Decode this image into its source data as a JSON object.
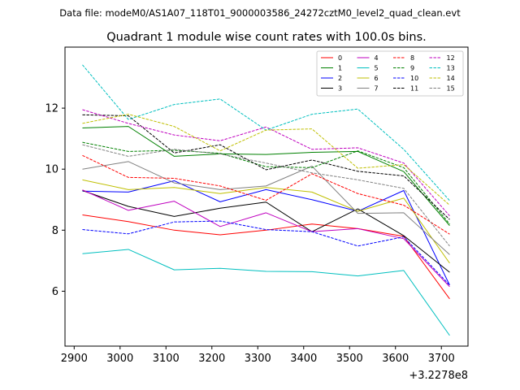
{
  "chart_data": {
    "type": "line",
    "suptitle": "Data file: modeM0/AS1A07_118T01_9000003586_24272cztM0_level2_quad_clean.evt",
    "title": "Quadrant 1 module wise count rates with 100.0s bins.",
    "xlabel": "",
    "ylabel": "",
    "offset_text": "+3.2278e8",
    "x": [
      2918,
      3018,
      3118,
      3218,
      3318,
      3418,
      3518,
      3618,
      3718
    ],
    "xlim": [
      2880,
      3758
    ],
    "ylim": [
      4.2,
      14.0
    ],
    "xticks": [
      2900,
      3000,
      3100,
      3200,
      3300,
      3400,
      3500,
      3600,
      3700
    ],
    "yticks": [
      6,
      8,
      10,
      12
    ],
    "grid": false,
    "legend": {
      "placement": "top-right",
      "columns": 4
    },
    "series": [
      {
        "name": "0",
        "color": "#ff0000",
        "dash": "solid",
        "values": [
          8.5,
          8.28,
          8.0,
          7.85,
          8.0,
          8.2,
          8.05,
          7.8,
          5.75
        ]
      },
      {
        "name": "1",
        "color": "#008000",
        "dash": "solid",
        "values": [
          11.35,
          11.4,
          10.42,
          10.5,
          10.48,
          10.55,
          10.58,
          9.92,
          8.15
        ]
      },
      {
        "name": "2",
        "color": "#0000ff",
        "dash": "solid",
        "values": [
          9.28,
          9.25,
          9.62,
          8.93,
          9.33,
          9.0,
          8.62,
          9.3,
          6.2
        ]
      },
      {
        "name": "3",
        "color": "#000000",
        "dash": "solid",
        "values": [
          9.3,
          8.78,
          8.45,
          8.72,
          8.92,
          7.95,
          8.7,
          7.82,
          6.62
        ]
      },
      {
        "name": "4",
        "color": "#bf00bf",
        "dash": "solid",
        "values": [
          9.32,
          8.65,
          8.95,
          8.12,
          8.57,
          7.95,
          8.05,
          7.72,
          6.15
        ]
      },
      {
        "name": "5",
        "color": "#00bfbf",
        "dash": "solid",
        "values": [
          7.23,
          7.37,
          6.7,
          6.75,
          6.65,
          6.64,
          6.5,
          6.68,
          4.55
        ]
      },
      {
        "name": "6",
        "color": "#bfbf00",
        "dash": "solid",
        "values": [
          9.65,
          9.33,
          9.4,
          9.2,
          9.4,
          9.25,
          8.62,
          9.05,
          6.92
        ]
      },
      {
        "name": "7",
        "color": "#808080",
        "dash": "solid",
        "values": [
          10.0,
          10.25,
          9.55,
          9.33,
          9.45,
          10.1,
          8.55,
          8.57,
          7.2
        ]
      },
      {
        "name": "8",
        "color": "#ff0000",
        "dash": "dashed",
        "values": [
          10.45,
          9.73,
          9.7,
          9.45,
          8.98,
          9.85,
          9.2,
          8.82,
          7.87
        ]
      },
      {
        "name": "9",
        "color": "#008000",
        "dash": "dashed",
        "values": [
          10.88,
          10.58,
          10.62,
          10.52,
          10.08,
          10.05,
          10.6,
          10.05,
          8.2
        ]
      },
      {
        "name": "10",
        "color": "#0000ff",
        "dash": "dashed",
        "values": [
          8.02,
          7.88,
          8.27,
          8.3,
          8.02,
          7.95,
          7.48,
          7.78,
          6.2
        ]
      },
      {
        "name": "11",
        "color": "#000000",
        "dash": "dashed",
        "values": [
          11.78,
          11.75,
          10.53,
          10.8,
          9.98,
          10.3,
          9.93,
          9.78,
          8.35
        ]
      },
      {
        "name": "12",
        "color": "#bf00bf",
        "dash": "dashed",
        "values": [
          11.95,
          11.5,
          11.12,
          10.93,
          11.38,
          10.65,
          10.7,
          10.2,
          8.47
        ]
      },
      {
        "name": "13",
        "color": "#00bfbf",
        "dash": "dashed",
        "values": [
          13.42,
          11.63,
          12.12,
          12.3,
          11.28,
          11.8,
          11.97,
          10.65,
          8.97
        ]
      },
      {
        "name": "14",
        "color": "#bfbf00",
        "dash": "dashed",
        "values": [
          11.5,
          11.8,
          11.4,
          10.6,
          11.28,
          11.32,
          10.03,
          10.15,
          8.82
        ]
      },
      {
        "name": "15",
        "color": "#808080",
        "dash": "dashed",
        "values": [
          10.8,
          10.42,
          10.65,
          10.5,
          10.2,
          9.88,
          9.65,
          9.37,
          7.48
        ]
      }
    ]
  }
}
